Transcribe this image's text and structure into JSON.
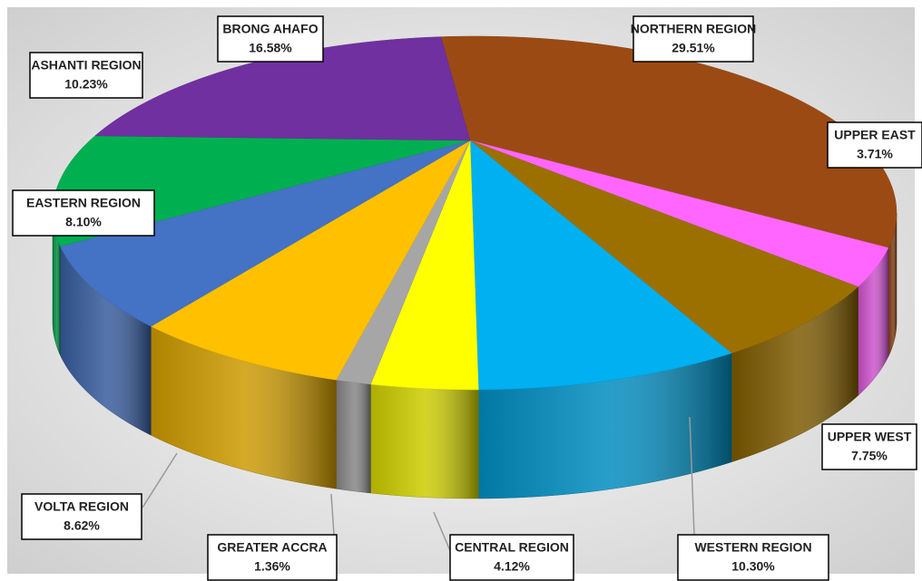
{
  "chart_data": {
    "type": "pie",
    "categories": [
      "NORTHERN REGION",
      "UPPER EAST",
      "UPPER WEST",
      "WESTERN REGION",
      "CENTRAL REGION",
      "GREATER ACCRA",
      "VOLTA REGION",
      "EASTERN REGION",
      "ASHANTI REGION",
      "BRONG AHAFO"
    ],
    "values": [
      29.51,
      3.71,
      7.75,
      10.3,
      4.12,
      1.36,
      8.62,
      8.1,
      10.23,
      16.58
    ],
    "value_labels": [
      "29.51%",
      "3.71%",
      "7.75%",
      "10.30%",
      "4.12%",
      "1.36%",
      "8.62%",
      "8.10%",
      "10.23%",
      "16.58%"
    ],
    "colors": [
      "#9c4a14",
      "#ff66ff",
      "#9c7000",
      "#00b0f0",
      "#ffff00",
      "#a6a6a6",
      "#ffc000",
      "#4472c4",
      "#00b050",
      "#7030a0"
    ]
  }
}
